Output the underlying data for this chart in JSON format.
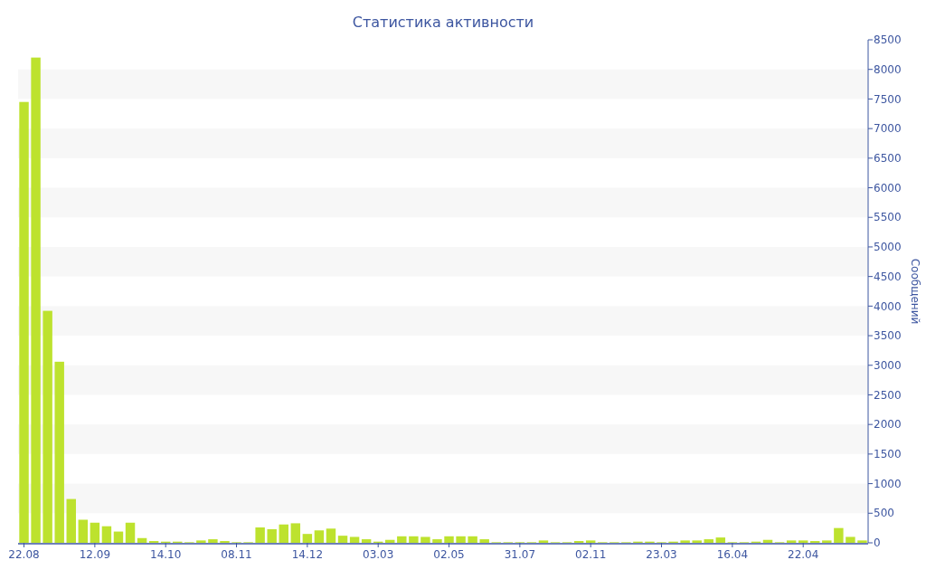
{
  "chart_data": {
    "type": "bar",
    "title": "Статистика активности",
    "ylabel": "Сообщений",
    "categories": [
      "22.08",
      null,
      null,
      null,
      null,
      null,
      "12.09",
      null,
      null,
      null,
      null,
      null,
      "14.10",
      null,
      null,
      null,
      null,
      null,
      "08.11",
      null,
      null,
      null,
      null,
      null,
      "14.12",
      null,
      null,
      null,
      null,
      null,
      "03.03",
      null,
      null,
      null,
      null,
      null,
      "02.05",
      null,
      null,
      null,
      null,
      null,
      "31.07",
      null,
      null,
      null,
      null,
      null,
      "02.11",
      null,
      null,
      null,
      null,
      null,
      "23.03",
      null,
      null,
      null,
      null,
      null,
      "16.04",
      null,
      null,
      null,
      null,
      null,
      "22.04",
      null,
      null,
      null,
      null,
      null
    ],
    "values": [
      7450,
      8200,
      3920,
      3060,
      740,
      390,
      340,
      280,
      190,
      340,
      80,
      30,
      20,
      20,
      10,
      40,
      60,
      30,
      10,
      10,
      260,
      230,
      310,
      330,
      150,
      210,
      240,
      120,
      100,
      60,
      20,
      50,
      110,
      110,
      100,
      60,
      110,
      110,
      110,
      60,
      10,
      10,
      10,
      10,
      40,
      10,
      10,
      30,
      40,
      10,
      10,
      10,
      20,
      20,
      10,
      20,
      40,
      40,
      60,
      90,
      10,
      10,
      20,
      50,
      10,
      40,
      40,
      30,
      40,
      250,
      100,
      40
    ],
    "color": "#bde22e",
    "ylim": [
      0,
      8500
    ],
    "yticks": [
      0,
      500,
      1000,
      1500,
      2000,
      2500,
      3000,
      3500,
      4000,
      4500,
      5000,
      5500,
      6000,
      6500,
      7000,
      7500,
      8000,
      8500
    ],
    "bands": [
      {
        "axis": "y",
        "from": 500,
        "to": 1000,
        "color": "#f7f7f7"
      },
      {
        "axis": "y",
        "from": 1500,
        "to": 2000,
        "color": "#f7f7f7"
      },
      {
        "axis": "y",
        "from": 2500,
        "to": 3000,
        "color": "#f7f7f7"
      },
      {
        "axis": "y",
        "from": 3500,
        "to": 4000,
        "color": "#f7f7f7"
      },
      {
        "axis": "y",
        "from": 4500,
        "to": 5000,
        "color": "#f7f7f7"
      },
      {
        "axis": "y",
        "from": 5500,
        "to": 6000,
        "color": "#f7f7f7"
      },
      {
        "axis": "y",
        "from": 6500,
        "to": 7000,
        "color": "#f7f7f7"
      },
      {
        "axis": "y",
        "from": 7500,
        "to": 8000,
        "color": "#f7f7f7"
      }
    ]
  }
}
